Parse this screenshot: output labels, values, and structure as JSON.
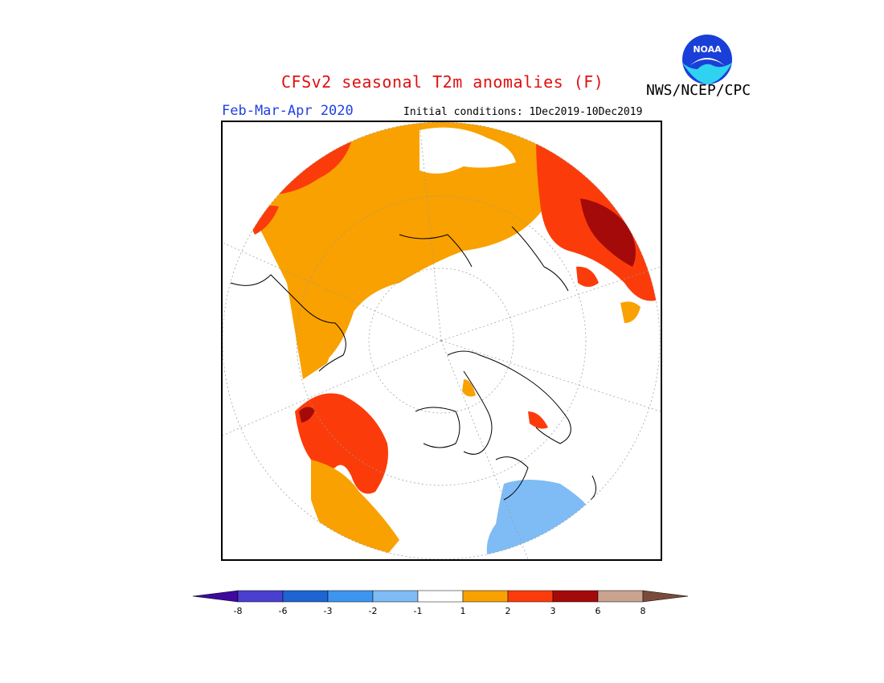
{
  "header": {
    "title": "CFSv2 seasonal T2m anomalies (F)",
    "period": "Feb-Mar-Apr 2020",
    "initial_conditions": "Initial conditions: 1Dec2019-10Dec2019",
    "agency": "NWS/NCEP/CPC",
    "logo_text": "NOAA"
  },
  "colorbar": {
    "bins": [
      {
        "color": "#3d0a9e"
      },
      {
        "color": "#4b3fcf"
      },
      {
        "color": "#1e64d2"
      },
      {
        "color": "#3c96ef"
      },
      {
        "color": "#7fbcf5"
      },
      {
        "color": "#ffffff"
      },
      {
        "color": "#f9a100"
      },
      {
        "color": "#fb3c0a"
      },
      {
        "color": "#a50a0a"
      },
      {
        "color": "#c9a390"
      },
      {
        "color": "#7a4b38"
      }
    ],
    "tick_labels": [
      "-8",
      "-6",
      "-3",
      "-2",
      "-1",
      "1",
      "2",
      "3",
      "6",
      "8"
    ]
  },
  "legend_colors": {
    "warm1": "#f9a100",
    "warm2": "#fb3c0a",
    "warm3": "#a50a0a",
    "cool1": "#7fbcf5"
  }
}
